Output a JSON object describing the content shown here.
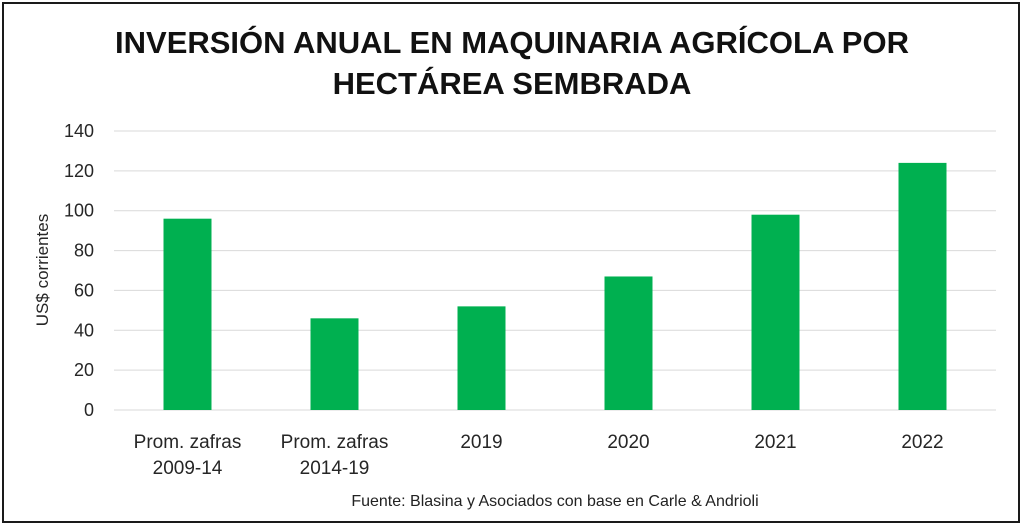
{
  "title": {
    "line1": "INVERSIÓN ANUAL EN MAQUINARIA AGRÍCOLA POR",
    "line2": "HECTÁREA SEMBRADA"
  },
  "source": "Fuente: Blasina y Asociados con base en Carle & Andrioli",
  "colors": {
    "bar": "#00b050",
    "grid": "#d9d9d9",
    "text": "#262626"
  },
  "chart_data": {
    "type": "bar",
    "categories": [
      [
        "Prom. zafras",
        "2009-14"
      ],
      [
        "Prom. zafras",
        "2014-19"
      ],
      [
        "2019"
      ],
      [
        "2020"
      ],
      [
        "2021"
      ],
      [
        "2022"
      ]
    ],
    "values": [
      96,
      46,
      52,
      67,
      98,
      124
    ],
    "ylabel": "US$ corrientes",
    "ylim": [
      0,
      140
    ],
    "yticks": [
      0,
      20,
      40,
      60,
      80,
      100,
      120,
      140
    ],
    "grid": true,
    "legend": false
  }
}
